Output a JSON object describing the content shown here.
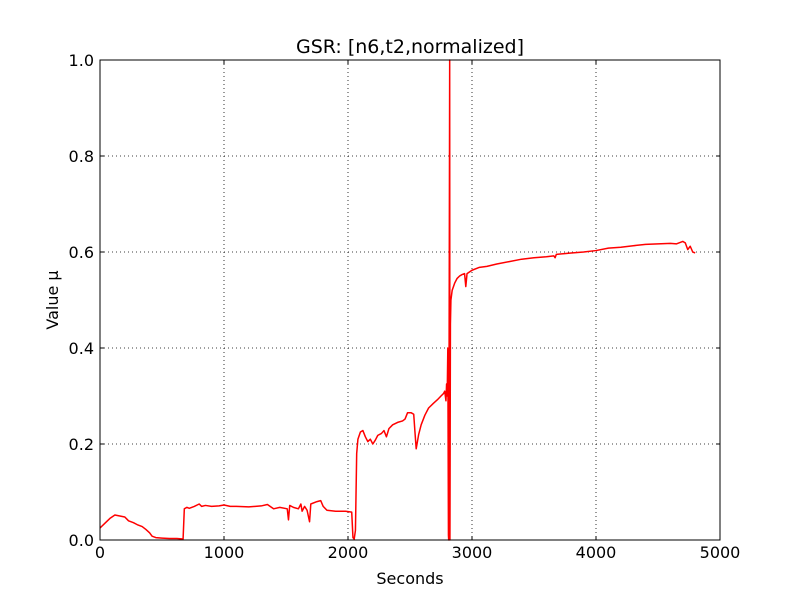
{
  "chart_data": {
    "type": "line",
    "title": "GSR: [n6,t2,normalized]",
    "xlabel": "Seconds",
    "ylabel": "Value μ",
    "xlim": [
      0,
      5000
    ],
    "ylim": [
      0.0,
      1.0
    ],
    "xticks": [
      0,
      1000,
      2000,
      3000,
      4000,
      5000
    ],
    "xtick_labels": [
      "0",
      "1000",
      "2000",
      "3000",
      "4000",
      "5000"
    ],
    "yticks": [
      0.0,
      0.2,
      0.4,
      0.6,
      0.8,
      1.0
    ],
    "ytick_labels": [
      "0.0",
      "0.2",
      "0.4",
      "0.6",
      "0.8",
      "1.0"
    ],
    "grid": true,
    "series": [
      {
        "color": "#ff0000",
        "points": [
          [
            0,
            0.025
          ],
          [
            40,
            0.035
          ],
          [
            80,
            0.045
          ],
          [
            120,
            0.052
          ],
          [
            160,
            0.05
          ],
          [
            200,
            0.048
          ],
          [
            230,
            0.04
          ],
          [
            270,
            0.036
          ],
          [
            300,
            0.032
          ],
          [
            340,
            0.028
          ],
          [
            370,
            0.022
          ],
          [
            400,
            0.015
          ],
          [
            420,
            0.008
          ],
          [
            450,
            0.005
          ],
          [
            500,
            0.004
          ],
          [
            560,
            0.003
          ],
          [
            620,
            0.003
          ],
          [
            670,
            0.002
          ],
          [
            680,
            0.065
          ],
          [
            700,
            0.068
          ],
          [
            720,
            0.066
          ],
          [
            760,
            0.07
          ],
          [
            800,
            0.075
          ],
          [
            820,
            0.07
          ],
          [
            850,
            0.072
          ],
          [
            900,
            0.07
          ],
          [
            960,
            0.071
          ],
          [
            1000,
            0.073
          ],
          [
            1050,
            0.07
          ],
          [
            1100,
            0.07
          ],
          [
            1200,
            0.069
          ],
          [
            1300,
            0.071
          ],
          [
            1350,
            0.074
          ],
          [
            1400,
            0.065
          ],
          [
            1450,
            0.068
          ],
          [
            1510,
            0.065
          ],
          [
            1520,
            0.042
          ],
          [
            1530,
            0.072
          ],
          [
            1560,
            0.068
          ],
          [
            1600,
            0.065
          ],
          [
            1620,
            0.075
          ],
          [
            1630,
            0.06
          ],
          [
            1650,
            0.07
          ],
          [
            1670,
            0.062
          ],
          [
            1690,
            0.038
          ],
          [
            1700,
            0.075
          ],
          [
            1750,
            0.08
          ],
          [
            1780,
            0.082
          ],
          [
            1800,
            0.07
          ],
          [
            1830,
            0.062
          ],
          [
            1900,
            0.06
          ],
          [
            1980,
            0.06
          ],
          [
            2030,
            0.058
          ],
          [
            2040,
            0.005
          ],
          [
            2050,
            0.002
          ],
          [
            2060,
            0.02
          ],
          [
            2070,
            0.18
          ],
          [
            2080,
            0.21
          ],
          [
            2100,
            0.225
          ],
          [
            2120,
            0.228
          ],
          [
            2140,
            0.215
          ],
          [
            2160,
            0.205
          ],
          [
            2180,
            0.21
          ],
          [
            2200,
            0.2
          ],
          [
            2220,
            0.208
          ],
          [
            2240,
            0.218
          ],
          [
            2270,
            0.222
          ],
          [
            2290,
            0.228
          ],
          [
            2310,
            0.215
          ],
          [
            2330,
            0.232
          ],
          [
            2360,
            0.24
          ],
          [
            2400,
            0.245
          ],
          [
            2440,
            0.248
          ],
          [
            2460,
            0.252
          ],
          [
            2480,
            0.265
          ],
          [
            2510,
            0.265
          ],
          [
            2530,
            0.262
          ],
          [
            2540,
            0.225
          ],
          [
            2550,
            0.19
          ],
          [
            2570,
            0.22
          ],
          [
            2590,
            0.24
          ],
          [
            2620,
            0.26
          ],
          [
            2650,
            0.275
          ],
          [
            2690,
            0.285
          ],
          [
            2720,
            0.292
          ],
          [
            2750,
            0.3
          ],
          [
            2770,
            0.305
          ],
          [
            2780,
            0.31
          ],
          [
            2790,
            0.29
          ],
          [
            2795,
            0.325
          ],
          [
            2800,
            0.3
          ],
          [
            2805,
            0.4
          ],
          [
            2810,
            0.01
          ],
          [
            2812,
            0.0
          ],
          [
            2815,
            0.35
          ],
          [
            2820,
            1.0
          ],
          [
            2822,
            0.0
          ],
          [
            2826,
            0.45
          ],
          [
            2830,
            0.5
          ],
          [
            2840,
            0.52
          ],
          [
            2860,
            0.535
          ],
          [
            2880,
            0.545
          ],
          [
            2900,
            0.55
          ],
          [
            2920,
            0.553
          ],
          [
            2940,
            0.555
          ],
          [
            2950,
            0.528
          ],
          [
            2960,
            0.555
          ],
          [
            3000,
            0.562
          ],
          [
            3060,
            0.568
          ],
          [
            3120,
            0.57
          ],
          [
            3200,
            0.575
          ],
          [
            3300,
            0.58
          ],
          [
            3400,
            0.585
          ],
          [
            3500,
            0.588
          ],
          [
            3600,
            0.59
          ],
          [
            3660,
            0.592
          ],
          [
            3670,
            0.588
          ],
          [
            3680,
            0.595
          ],
          [
            3800,
            0.598
          ],
          [
            3900,
            0.6
          ],
          [
            4000,
            0.603
          ],
          [
            4100,
            0.608
          ],
          [
            4200,
            0.61
          ],
          [
            4300,
            0.613
          ],
          [
            4400,
            0.616
          ],
          [
            4500,
            0.617
          ],
          [
            4600,
            0.618
          ],
          [
            4650,
            0.617
          ],
          [
            4700,
            0.622
          ],
          [
            4720,
            0.619
          ],
          [
            4740,
            0.605
          ],
          [
            4760,
            0.612
          ],
          [
            4780,
            0.6
          ],
          [
            4800,
            0.598
          ]
        ]
      }
    ]
  }
}
